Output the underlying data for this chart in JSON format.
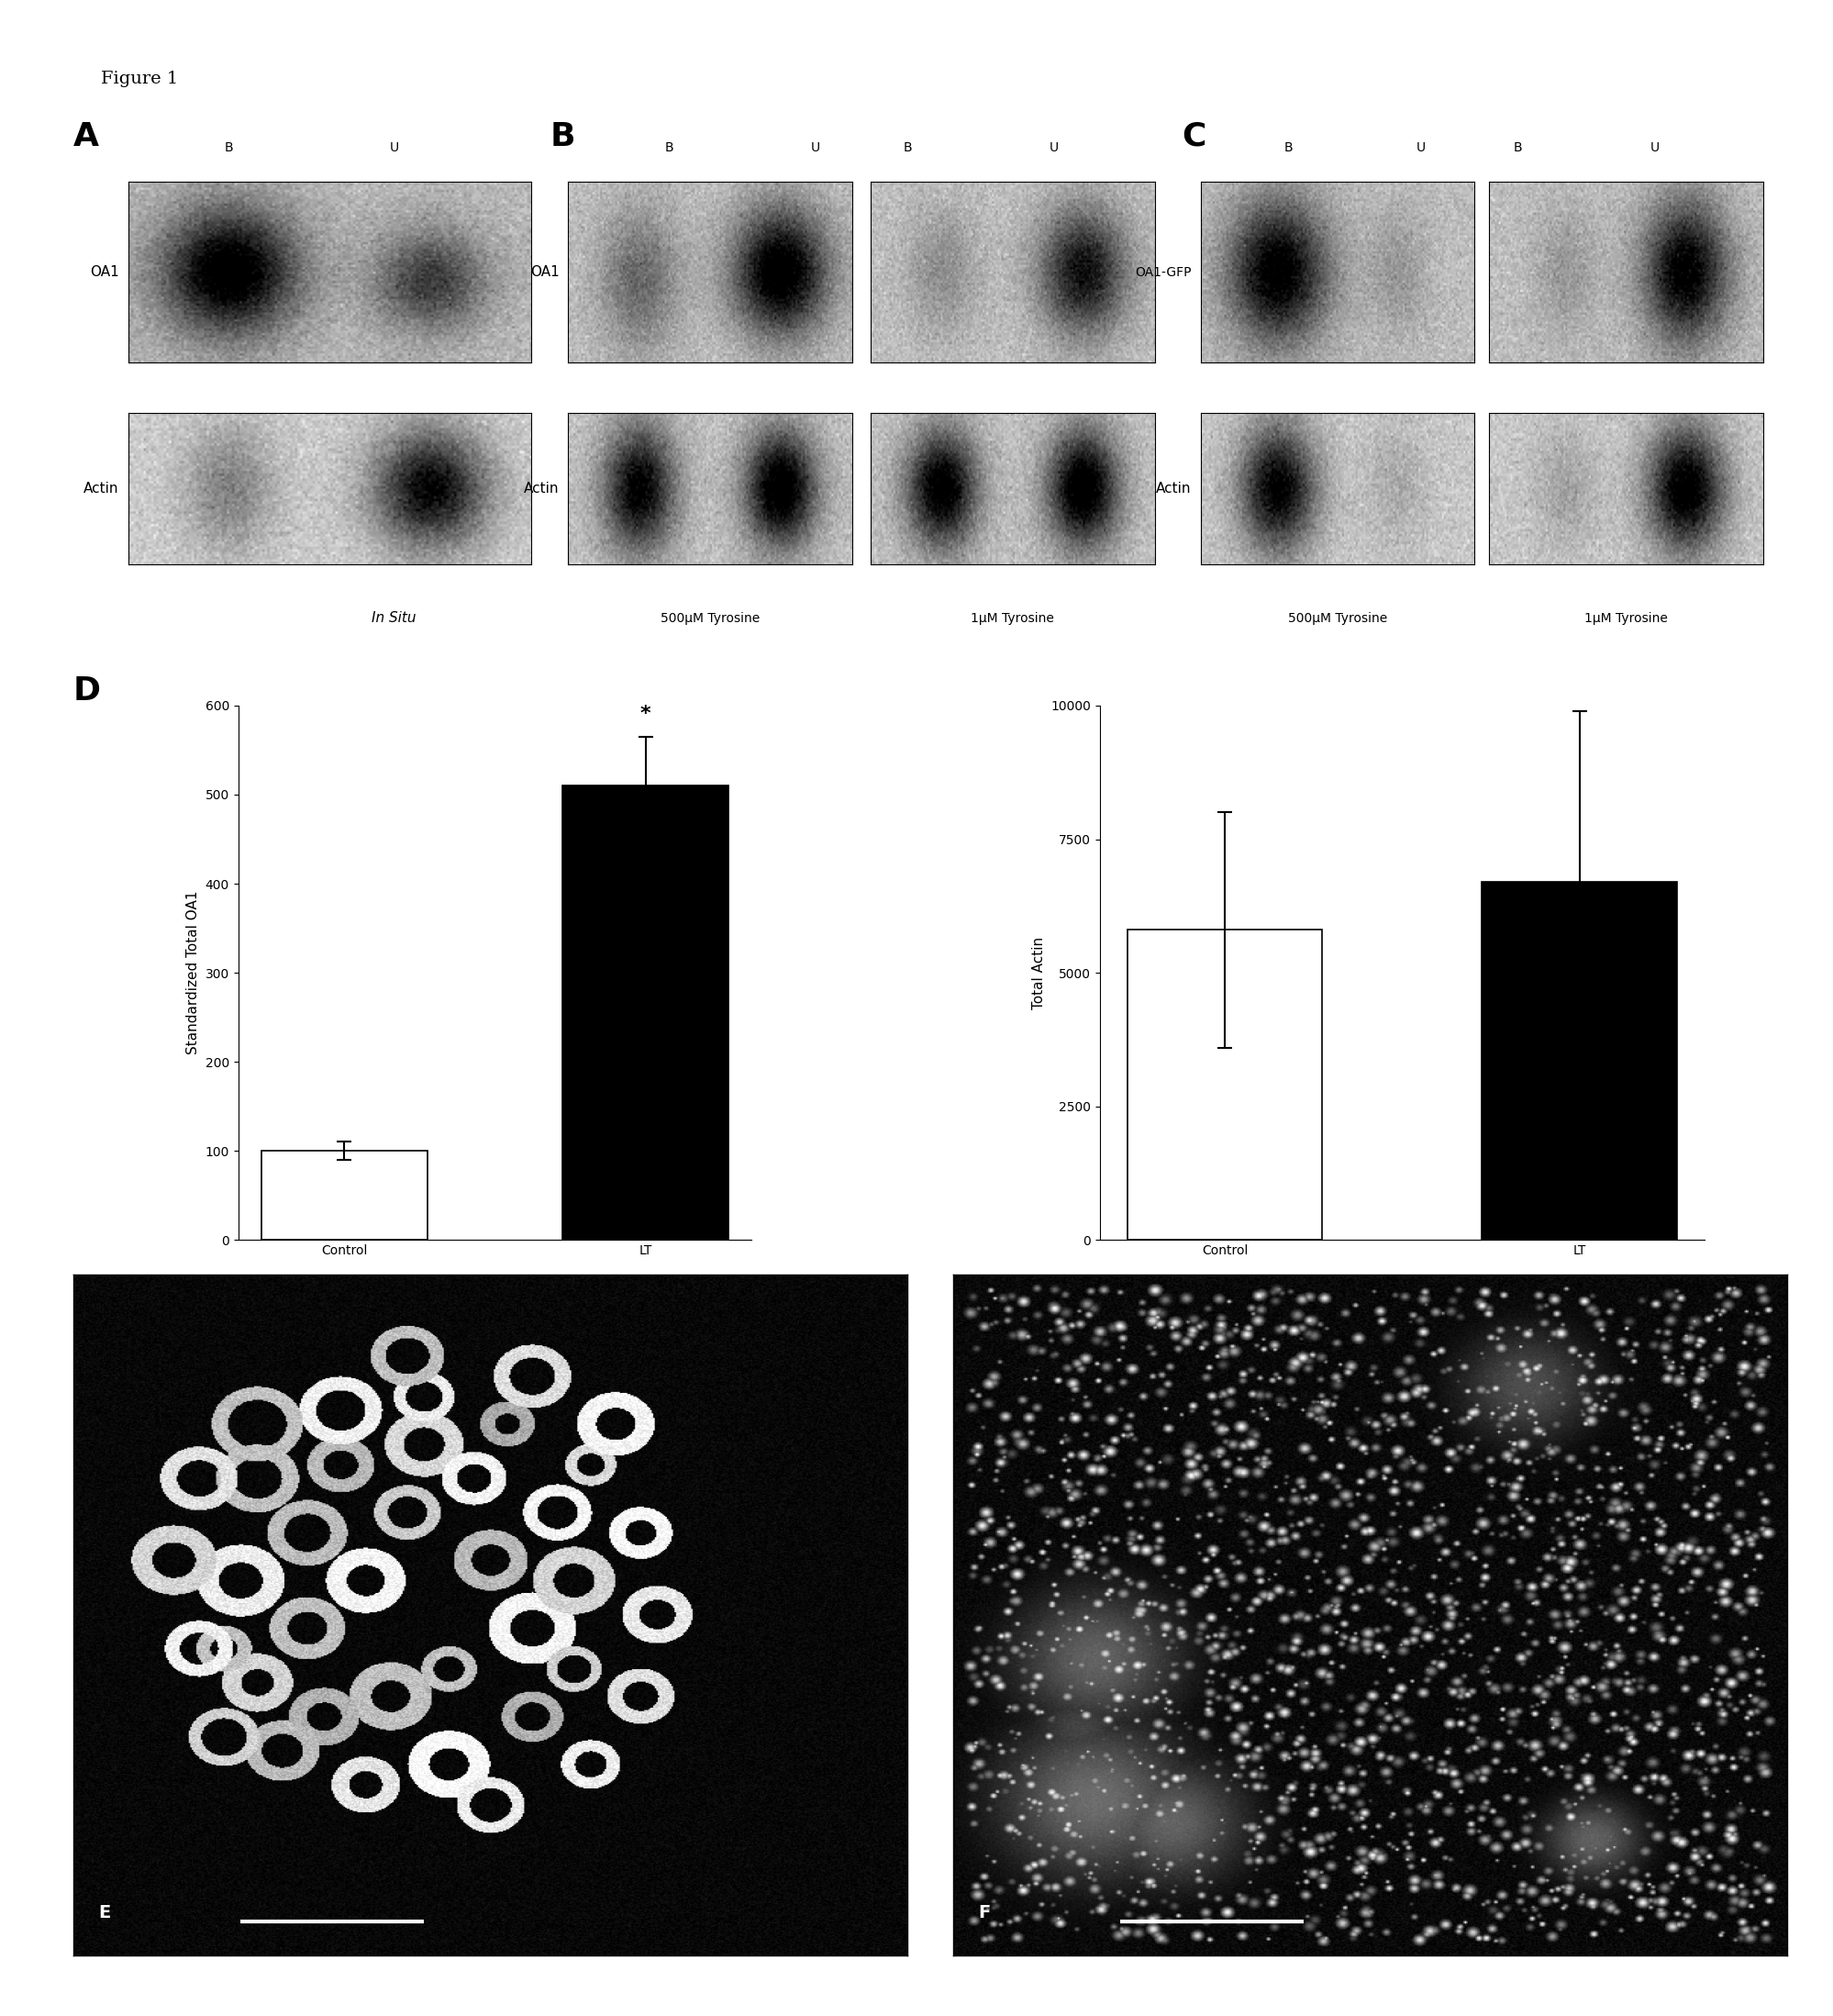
{
  "figure_title": "Figure 1",
  "background_color": "#ffffff",
  "panel_A_label": "A",
  "panel_B_label": "B",
  "panel_C_label": "C",
  "panel_D_label": "D",
  "panel_E_label": "E",
  "panel_F_label": "F",
  "panel_A_subtitle": "In Situ",
  "panel_B_subtitle1": "500μM Tyrosine",
  "panel_B_subtitle2": "1μM Tyrosine",
  "panel_C_subtitle1": "500μM Tyrosine",
  "panel_C_subtitle2": "1μM Tyrosine",
  "bar_chart1_categories": [
    "Control",
    "LT"
  ],
  "bar_chart1_values": [
    100,
    510
  ],
  "bar_chart1_errors": [
    10,
    55
  ],
  "bar_chart1_colors": [
    "#ffffff",
    "#000000"
  ],
  "bar_chart1_ylabel": "Standardized Total OA1",
  "bar_chart1_ylim": [
    0,
    600
  ],
  "bar_chart1_yticks": [
    0,
    100,
    200,
    300,
    400,
    500,
    600
  ],
  "bar_chart1_star": "*",
  "bar_chart2_categories": [
    "Control",
    "LT"
  ],
  "bar_chart2_values": [
    5800,
    6700
  ],
  "bar_chart2_errors": [
    2200,
    3200
  ],
  "bar_chart2_colors": [
    "#ffffff",
    "#000000"
  ],
  "bar_chart2_ylabel": "Total Actin",
  "bar_chart2_ylim": [
    0,
    10000
  ],
  "bar_chart2_yticks": [
    0,
    2500,
    5000,
    7500,
    10000
  ],
  "font_size_panel_label": 26,
  "font_size_row_label": 11,
  "font_size_col_label": 10,
  "font_size_subtitle": 11,
  "font_size_title": 14,
  "font_size_bar_ylabel": 11,
  "font_size_bar_tick": 10,
  "font_size_star": 16,
  "font_size_scalebar_label": 12
}
